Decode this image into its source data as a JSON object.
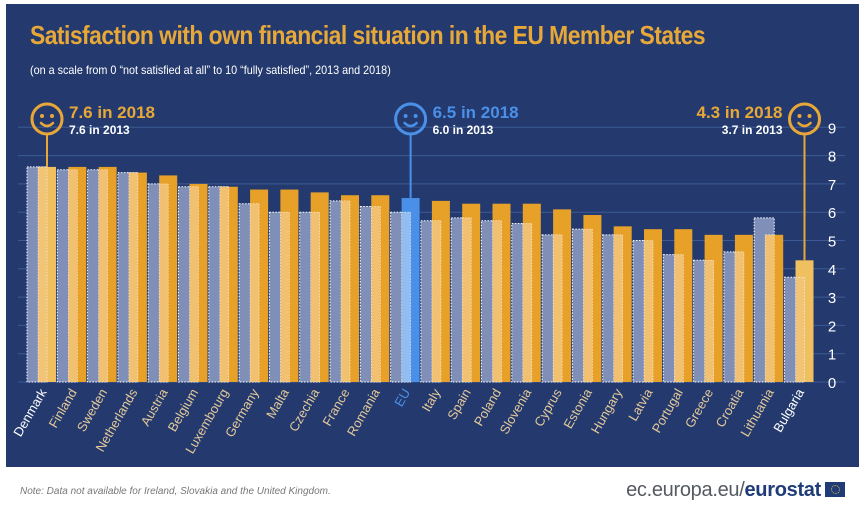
{
  "chart_data": {
    "type": "bar",
    "title": "Satisfaction with own financial situation in the EU Member States",
    "subtitle": "(on a scale from 0 “not satisfied at all” to 10 “fully satisfied”, 2013 and 2018)",
    "xlabel": "",
    "ylabel": "",
    "ylim": [
      0,
      9
    ],
    "yticks": [
      "0",
      "1",
      "2",
      "3",
      "4",
      "5",
      "6",
      "7",
      "8",
      "9"
    ],
    "grid": true,
    "categories": [
      "Denmark",
      "Finland",
      "Sweden",
      "Netherlands",
      "Austria",
      "Belgium",
      "Luxembourg",
      "Germany",
      "Malta",
      "Czechia",
      "France",
      "Romania",
      "EU",
      "Italy",
      "Spain",
      "Poland",
      "Slovenia",
      "Cyprus",
      "Estonia",
      "Hungary",
      "Latvia",
      "Portugal",
      "Greece",
      "Croatia",
      "Lithuania",
      "Bulgaria"
    ],
    "series": [
      {
        "name": "2013",
        "values": [
          7.6,
          7.5,
          7.5,
          7.4,
          7.0,
          6.9,
          6.9,
          6.3,
          6.0,
          6.0,
          6.4,
          6.2,
          6.0,
          5.7,
          5.8,
          5.7,
          5.6,
          5.2,
          5.4,
          5.2,
          5.0,
          4.5,
          4.3,
          4.6,
          5.8,
          3.7
        ]
      },
      {
        "name": "2018",
        "values": [
          7.6,
          7.6,
          7.6,
          7.4,
          7.3,
          7.0,
          6.9,
          6.8,
          6.8,
          6.7,
          6.6,
          6.6,
          6.5,
          6.4,
          6.3,
          6.3,
          6.3,
          6.1,
          5.9,
          5.5,
          5.4,
          5.4,
          5.2,
          5.2,
          5.2,
          4.3
        ]
      }
    ],
    "highlights": [
      {
        "category": "Denmark",
        "label_2018": "7.6 in 2018",
        "label_2013": "7.6 in 2013",
        "icon": "smiley-icon"
      },
      {
        "category": "EU",
        "label_2018": "6.5 in 2018",
        "label_2013": "6.0 in 2013",
        "icon": "smiley-icon"
      },
      {
        "category": "Bulgaria",
        "label_2018": "4.3 in 2018",
        "label_2013": "3.7 in 2013",
        "icon": "smiley-icon"
      }
    ],
    "legend": "none"
  },
  "colors": {
    "background": "#243a6e",
    "bar_2013": "#7f8fb8",
    "bar_2018": "#e8a128",
    "bar_2018_highlight": "#f0c060",
    "bar_eu": "#4a90e8",
    "overlap": "#f2c57a",
    "title": "#e8a838",
    "label_default": "#e4c99a",
    "label_highlight": "#ffffff",
    "label_eu": "#4a90e8"
  },
  "footer": {
    "note": "Note: Data not available for Ireland, Slovakia and the United Kingdom.",
    "brand_prefix": "ec.europa.eu/",
    "brand_bold": "eurostat"
  }
}
